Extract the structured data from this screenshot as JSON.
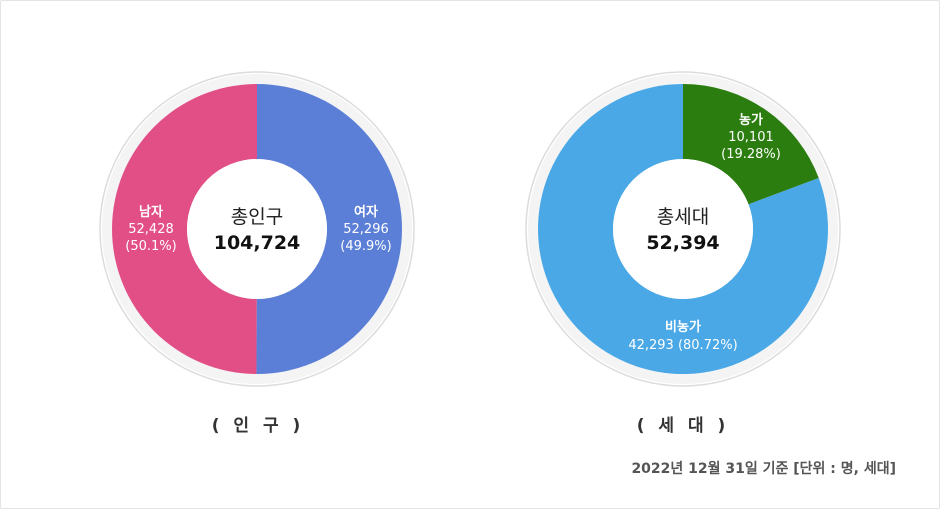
{
  "chart_data": [
    {
      "type": "pie",
      "center_label": "총인구",
      "center_value": "104,724",
      "caption": "( 인 구 )",
      "colors": [
        "#5b7fd6",
        "#e24f87"
      ],
      "slices": [
        {
          "label": "남자",
          "value": 52428,
          "value_text": "52,428",
          "percent_text": "(50.1%)"
        },
        {
          "label": "여자",
          "value": 52296,
          "value_text": "52,296",
          "percent_text": "(49.9%)"
        }
      ]
    },
    {
      "type": "pie",
      "center_label": "총세대",
      "center_value": "52,394",
      "caption": "( 세 대 )",
      "colors": [
        "#2b7d0f",
        "#4aa8e6"
      ],
      "slices": [
        {
          "label": "농가",
          "value": 10101,
          "value_text": "10,101",
          "percent_text": "(19.28%)"
        },
        {
          "label": "비농가",
          "value": 42293,
          "value_text": "42,293",
          "percent_text": "(80.72%)"
        }
      ]
    }
  ],
  "footnote": "2022년 12월 31일 기준  [단위 : 명, 세대]"
}
